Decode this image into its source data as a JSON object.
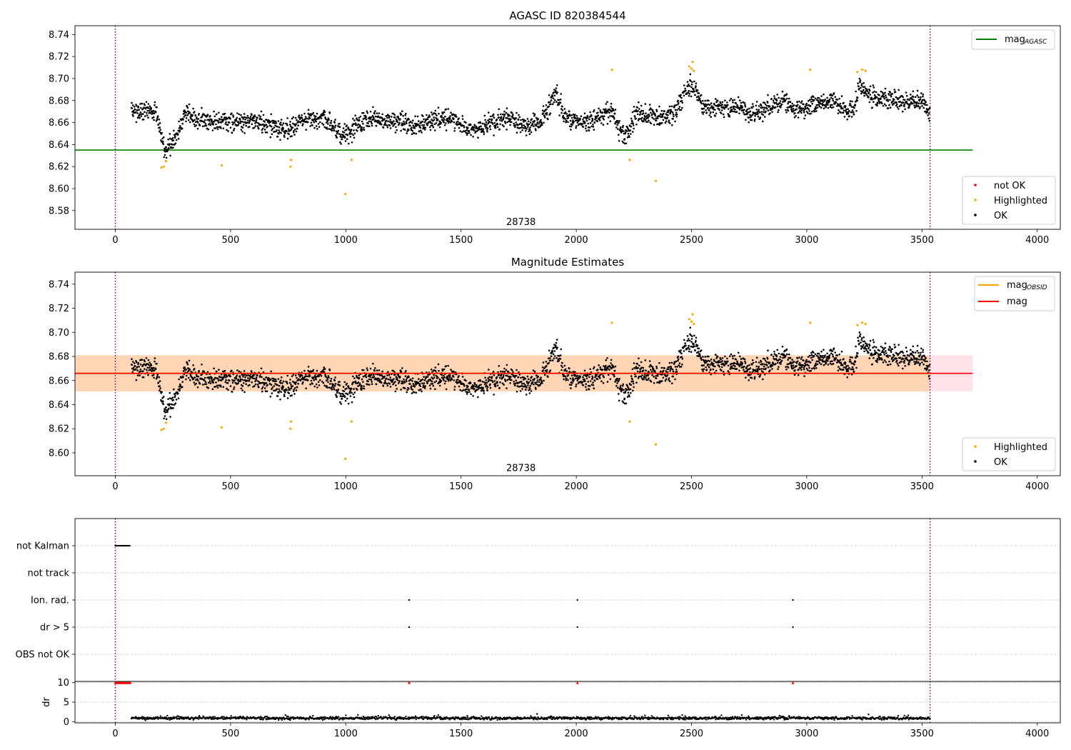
{
  "chart_data": [
    {
      "type": "scatter",
      "title": "AGASC ID 820384544",
      "xlim": [
        -175,
        4100
      ],
      "ylim": [
        8.563,
        8.748
      ],
      "x_ticks": [
        0,
        500,
        1000,
        1500,
        2000,
        2500,
        3000,
        3500,
        4000
      ],
      "y_ticks": [
        8.58,
        8.6,
        8.62,
        8.64,
        8.66,
        8.68,
        8.7,
        8.72,
        8.74
      ],
      "vlines": [
        0,
        3535
      ],
      "hlines": [
        {
          "name": "mag",
          "sub": "AGASC",
          "y": 8.635,
          "x_range": [
            -175,
            3720
          ],
          "color": "#008000"
        }
      ],
      "annotation": {
        "text": "28738",
        "x": 1760,
        "y": 8.567
      },
      "series": [
        {
          "name": "not OK",
          "color": "#ff0000",
          "values": []
        },
        {
          "name": "Highlighted",
          "color": "#ffa500",
          "points": [
            [
              200,
              8.619
            ],
            [
              210,
              8.62
            ],
            [
              220,
              8.625
            ],
            [
              462,
              8.621
            ],
            [
              760,
              8.62
            ],
            [
              762,
              8.626
            ],
            [
              998,
              8.595
            ],
            [
              1025,
              8.626
            ],
            [
              2155,
              8.708
            ],
            [
              2232,
              8.626
            ],
            [
              2345,
              8.607
            ],
            [
              2490,
              8.711
            ],
            [
              2500,
              8.709
            ],
            [
              2505,
              8.715
            ],
            [
              2510,
              8.707
            ],
            [
              3015,
              8.708
            ],
            [
              3220,
              8.706
            ],
            [
              3240,
              8.708
            ],
            [
              3255,
              8.707
            ]
          ]
        },
        {
          "name": "OK",
          "color": "#000000",
          "range": [
            70,
            3535
          ]
        }
      ],
      "legend": [
        {
          "name": "mag",
          "sub": "AGASC"
        },
        {
          "name": "not OK"
        },
        {
          "name": "Highlighted"
        },
        {
          "name": "OK"
        }
      ],
      "legend_placement": [
        "top-right",
        "bottom-right"
      ]
    },
    {
      "type": "scatter",
      "title": "Magnitude Estimates",
      "xlim": [
        -175,
        4100
      ],
      "ylim": [
        8.581,
        8.75
      ],
      "x_ticks": [
        0,
        500,
        1000,
        1500,
        2000,
        2500,
        3000,
        3500,
        4000
      ],
      "y_ticks": [
        8.6,
        8.62,
        8.64,
        8.66,
        8.68,
        8.7,
        8.72,
        8.74
      ],
      "vlines": [
        0,
        3535
      ],
      "bands": [
        {
          "x_range": [
            -175,
            3720
          ],
          "y": [
            8.651,
            8.681
          ],
          "color": "#ffc0cb"
        },
        {
          "x_range": [
            -175,
            3535
          ],
          "y": [
            8.651,
            8.681
          ],
          "color": "#ffa500"
        }
      ],
      "hlines": [
        {
          "name": "mag",
          "sub": "OBSID",
          "y": 8.666,
          "x_range": [
            -175,
            3535
          ],
          "color": "#ffa500"
        },
        {
          "name": "mag",
          "sub": "",
          "y": 8.666,
          "x_range": [
            -175,
            3720
          ],
          "color": "#ff0000"
        }
      ],
      "annotation": {
        "text": "28738",
        "x": 1760,
        "y": 8.585
      },
      "series": [
        {
          "name": "Highlighted",
          "color": "#ffa500",
          "points": [
            [
              200,
              8.619
            ],
            [
              210,
              8.62
            ],
            [
              220,
              8.625
            ],
            [
              462,
              8.621
            ],
            [
              760,
              8.62
            ],
            [
              762,
              8.626
            ],
            [
              998,
              8.595
            ],
            [
              1025,
              8.626
            ],
            [
              2155,
              8.708
            ],
            [
              2232,
              8.626
            ],
            [
              2345,
              8.607
            ],
            [
              2490,
              8.711
            ],
            [
              2500,
              8.709
            ],
            [
              2505,
              8.715
            ],
            [
              2510,
              8.707
            ],
            [
              3015,
              8.708
            ],
            [
              3220,
              8.706
            ],
            [
              3240,
              8.708
            ],
            [
              3255,
              8.707
            ]
          ]
        },
        {
          "name": "OK",
          "color": "#000000",
          "range": [
            70,
            3535
          ]
        }
      ],
      "legend": [
        {
          "name": "mag",
          "sub": "OBSID"
        },
        {
          "name": "mag",
          "sub": ""
        },
        {
          "name": "Highlighted"
        },
        {
          "name": "OK"
        }
      ],
      "legend_placement": [
        "top-right",
        "bottom-right"
      ]
    },
    {
      "type": "scatter",
      "xlim": [
        -175,
        4100
      ],
      "categories": [
        "not Kalman",
        "not track",
        "Ion. rad.",
        "dr > 5",
        "OBS not OK"
      ],
      "vlines": [
        0,
        3535
      ],
      "flags": {
        "not Kalman": {
          "range": [
            0,
            65
          ]
        },
        "Ion. rad.": {
          "points": [
            1275,
            2005,
            2940
          ]
        },
        "dr > 5": {
          "points": [
            1275,
            2005,
            2940
          ]
        }
      }
    },
    {
      "type": "scatter",
      "ylabel": "dr",
      "xlim": [
        -175,
        4100
      ],
      "ylim": [
        -0.3,
        10.3
      ],
      "x_ticks": [
        0,
        500,
        1000,
        1500,
        2000,
        2500,
        3000,
        3500,
        4000
      ],
      "y_ticks": [
        0,
        5,
        10
      ],
      "vlines": [
        0,
        3535
      ],
      "series": [
        {
          "name": "dr",
          "color": "#000000",
          "range": [
            70,
            3535
          ],
          "typical": 0.9
        },
        {
          "name": "clipped",
          "color": "#ff0000",
          "clip": 10,
          "points": [
            0,
            5,
            10,
            15,
            20,
            25,
            30,
            35,
            40,
            45,
            50,
            55,
            60,
            65,
            1275,
            2005,
            2940
          ]
        }
      ]
    }
  ]
}
